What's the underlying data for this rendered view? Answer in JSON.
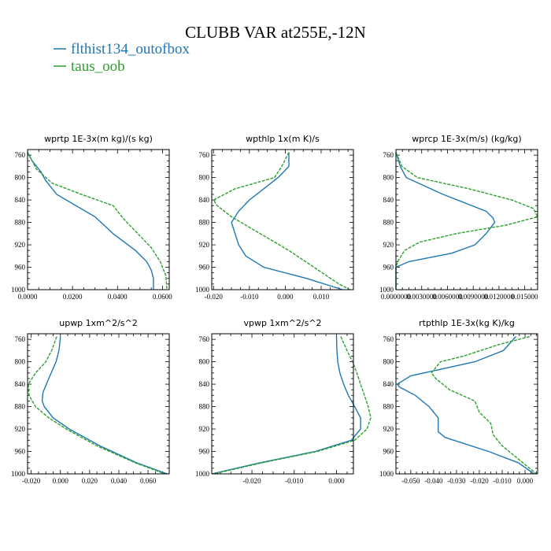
{
  "title": "CLUBB VAR at255E,-12N",
  "colors": {
    "flthist134_outofbox": "#1f77b4",
    "taus_oob": "#2ca02c"
  },
  "legend": [
    {
      "name": "flthist134_outofbox",
      "color": "#1f77b4",
      "dash": false
    },
    {
      "name": "taus_oob",
      "color": "#2ca02c",
      "dash": true
    }
  ],
  "chart_data": [
    {
      "type": "line",
      "title": "wprtp  1E-3x(m kg)/(s kg)",
      "xlim": [
        0,
        0.063
      ],
      "ylim": [
        1000,
        750
      ],
      "y_reversed": true,
      "xticks": [
        0,
        0.02,
        0.04,
        0.06
      ],
      "xticklabels": [
        "0.0000",
        "0.0200",
        "0.0400",
        "0.0600"
      ],
      "yticks": [
        760,
        800,
        840,
        880,
        920,
        960,
        1000
      ],
      "series": [
        {
          "name": "flthist134_outofbox",
          "y": [
            755,
            770,
            790,
            805,
            830,
            870,
            900,
            930,
            950,
            965,
            980,
            1000
          ],
          "x": [
            0.0,
            0.002,
            0.006,
            0.008,
            0.013,
            0.03,
            0.038,
            0.048,
            0.053,
            0.055,
            0.056,
            0.056
          ]
        },
        {
          "name": "taus_oob",
          "y": [
            755,
            785,
            810,
            830,
            850,
            875,
            900,
            925,
            950,
            975,
            1000
          ],
          "x": [
            0.0,
            0.004,
            0.011,
            0.024,
            0.038,
            0.043,
            0.049,
            0.055,
            0.059,
            0.0615,
            0.062
          ]
        }
      ]
    },
    {
      "type": "line",
      "title": "wpthlp  1x(m K)/s",
      "xlim": [
        -0.0205,
        0.019
      ],
      "ylim": [
        1000,
        750
      ],
      "y_reversed": true,
      "xticks": [
        -0.02,
        -0.01,
        0,
        0.01
      ],
      "xticklabels": [
        "-0.020",
        "-0.010",
        "0.000",
        "0.010"
      ],
      "yticks": [
        760,
        800,
        840,
        880,
        920,
        960,
        1000
      ],
      "series": [
        {
          "name": "flthist134_outofbox",
          "y": [
            755,
            780,
            800,
            820,
            840,
            860,
            880,
            900,
            920,
            940,
            960,
            980,
            1000
          ],
          "x": [
            0.001,
            0.001,
            -0.002,
            -0.006,
            -0.01,
            -0.013,
            -0.015,
            -0.014,
            -0.013,
            -0.011,
            -0.006,
            0.006,
            0.016
          ]
        },
        {
          "name": "taus_oob",
          "y": [
            755,
            780,
            800,
            820,
            840,
            850,
            870,
            900,
            930,
            960,
            990,
            1000
          ],
          "x": [
            0.001,
            -0.001,
            -0.003,
            -0.014,
            -0.02,
            -0.019,
            -0.015,
            -0.007,
            0.001,
            0.008,
            0.015,
            0.018
          ]
        }
      ]
    },
    {
      "type": "line",
      "title": "wprcp  1E-3x(m/s) (kg/kg)",
      "xlim": [
        0,
        0.0165
      ],
      "ylim": [
        1000,
        750
      ],
      "y_reversed": true,
      "xticks": [
        0,
        0.003,
        0.006,
        0.009,
        0.012,
        0.015
      ],
      "xticklabels": [
        "0.0000000",
        "0.0030000",
        "0.0060000",
        "0.0090000",
        "0.0120000",
        "0.015000"
      ],
      "yticks": [
        760,
        800,
        840,
        880,
        920,
        960,
        1000
      ],
      "series": [
        {
          "name": "flthist134_outofbox",
          "y": [
            755,
            780,
            800,
            830,
            860,
            872,
            880,
            900,
            920,
            935,
            950,
            960,
            1000
          ],
          "x": [
            0.0,
            0.0005,
            0.0012,
            0.0055,
            0.0105,
            0.0113,
            0.0115,
            0.0105,
            0.0092,
            0.0065,
            0.0015,
            0.0,
            0.0
          ]
        },
        {
          "name": "taus_oob",
          "y": [
            755,
            780,
            800,
            820,
            840,
            855,
            870,
            885,
            900,
            915,
            930,
            950,
            960,
            1000
          ],
          "x": [
            0.0,
            0.0007,
            0.0025,
            0.0085,
            0.0135,
            0.016,
            0.0165,
            0.0128,
            0.007,
            0.0028,
            0.001,
            0.0002,
            0.0,
            0.0
          ]
        }
      ]
    },
    {
      "type": "line",
      "title": "upwp  1xm^2/s^2",
      "xlim": [
        -0.0225,
        0.0745
      ],
      "ylim": [
        1000,
        750
      ],
      "y_reversed": true,
      "xticks": [
        -0.02,
        0,
        0.02,
        0.04,
        0.06
      ],
      "xticklabels": [
        "-0.020",
        "0.000",
        "0.020",
        "0.040",
        "0.060"
      ],
      "yticks": [
        760,
        800,
        840,
        880,
        920,
        960,
        1000
      ],
      "series": [
        {
          "name": "flthist134_outofbox",
          "y": [
            755,
            780,
            800,
            830,
            855,
            870,
            880,
            900,
            920,
            950,
            980,
            1000
          ],
          "x": [
            0.0,
            -0.001,
            -0.003,
            -0.008,
            -0.012,
            -0.0125,
            -0.011,
            -0.005,
            0.006,
            0.027,
            0.052,
            0.073
          ]
        },
        {
          "name": "taus_oob",
          "y": [
            755,
            780,
            800,
            820,
            840,
            860,
            880,
            900,
            920,
            950,
            980,
            1000
          ],
          "x": [
            -0.0025,
            -0.006,
            -0.01,
            -0.017,
            -0.022,
            -0.0215,
            -0.017,
            -0.008,
            0.004,
            0.025,
            0.051,
            0.0715
          ]
        }
      ]
    },
    {
      "type": "line",
      "title": "vpwp  1xm^2/s^2",
      "xlim": [
        -0.0295,
        0.004
      ],
      "ylim": [
        1000,
        750
      ],
      "y_reversed": true,
      "xticks": [
        -0.02,
        -0.01,
        0
      ],
      "xticklabels": [
        "-0.020",
        "-0.010",
        "0.000"
      ],
      "yticks": [
        760,
        800,
        840,
        880,
        920,
        960,
        1000
      ],
      "series": [
        {
          "name": "flthist134_outofbox",
          "y": [
            755,
            780,
            800,
            820,
            840,
            860,
            880,
            900,
            920,
            940,
            960,
            980,
            1000
          ],
          "x": [
            0.0,
            0.0001,
            0.0003,
            0.0008,
            0.0017,
            0.0028,
            0.0043,
            0.0057,
            0.0057,
            0.0035,
            -0.005,
            -0.018,
            -0.0295
          ]
        },
        {
          "name": "taus_oob",
          "y": [
            755,
            780,
            800,
            820,
            840,
            860,
            880,
            900,
            920,
            940,
            960,
            980,
            1000
          ],
          "x": [
            0.001,
            0.0025,
            0.0038,
            0.0048,
            0.0057,
            0.0066,
            0.0075,
            0.0081,
            0.0072,
            0.0043,
            -0.0045,
            -0.0175,
            -0.029
          ]
        }
      ]
    },
    {
      "type": "line",
      "title": "rtpthlp  1E-3x(kg K)/kg",
      "xlim": [
        -0.0565,
        0.0055
      ],
      "ylim": [
        1000,
        750
      ],
      "y_reversed": true,
      "xticks": [
        -0.05,
        -0.04,
        -0.03,
        -0.02,
        -0.01,
        0
      ],
      "xticklabels": [
        "-0.050",
        "-0.040",
        "-0.030",
        "-0.020",
        "-0.010",
        "0.000"
      ],
      "yticks": [
        760,
        800,
        840,
        880,
        920,
        960,
        1000
      ],
      "series": [
        {
          "name": "flthist134_outofbox",
          "y": [
            755,
            780,
            800,
            825,
            840,
            845,
            860,
            880,
            900,
            925,
            935,
            960,
            980,
            1000
          ],
          "x": [
            -0.004,
            -0.0095,
            -0.022,
            -0.05,
            -0.056,
            -0.055,
            -0.048,
            -0.042,
            -0.038,
            -0.038,
            -0.035,
            -0.016,
            -0.003,
            0.004
          ]
        },
        {
          "name": "taus_oob",
          "y": [
            755,
            770,
            790,
            800,
            820,
            830,
            850,
            870,
            890,
            910,
            930,
            950,
            970,
            990,
            1000
          ],
          "x": [
            0.002,
            -0.012,
            -0.027,
            -0.037,
            -0.041,
            -0.039,
            -0.033,
            -0.022,
            -0.02,
            -0.015,
            -0.014,
            -0.01,
            -0.004,
            0.002,
            0.005
          ]
        }
      ]
    }
  ]
}
